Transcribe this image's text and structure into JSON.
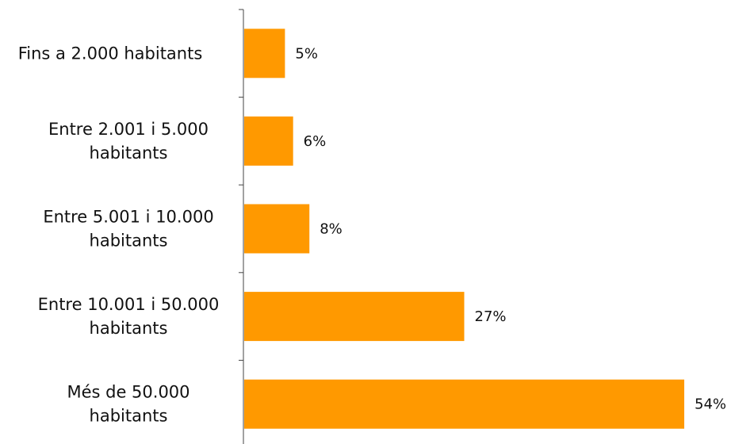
{
  "chart_data": {
    "type": "bar",
    "orientation": "horizontal",
    "categories": [
      "Fins a 2.000 habitants",
      "Entre 2.001 i 5.000 habitants",
      "Entre 5.001 i 10.000 habitants",
      "Entre 10.001 i 50.000 habitants",
      "Més de 50.000 habitants"
    ],
    "category_lines": [
      [
        "Fins a 2.000 habitants"
      ],
      [
        "Entre 2.001 i 5.000",
        "habitants"
      ],
      [
        "Entre 5.001 i 10.000",
        "habitants"
      ],
      [
        "Entre 10.001 i 50.000",
        "habitants"
      ],
      [
        "Més de 50.000",
        "habitants"
      ]
    ],
    "values": [
      5,
      6,
      8,
      27,
      54
    ],
    "value_labels": [
      "5%",
      "6%",
      "8%",
      "27%",
      "54%"
    ],
    "unit": "%",
    "xlim": [
      0,
      54
    ],
    "grid": false,
    "legend": "none",
    "title": "",
    "xlabel": "",
    "ylabel": "",
    "bar_color": "#FF9900"
  }
}
